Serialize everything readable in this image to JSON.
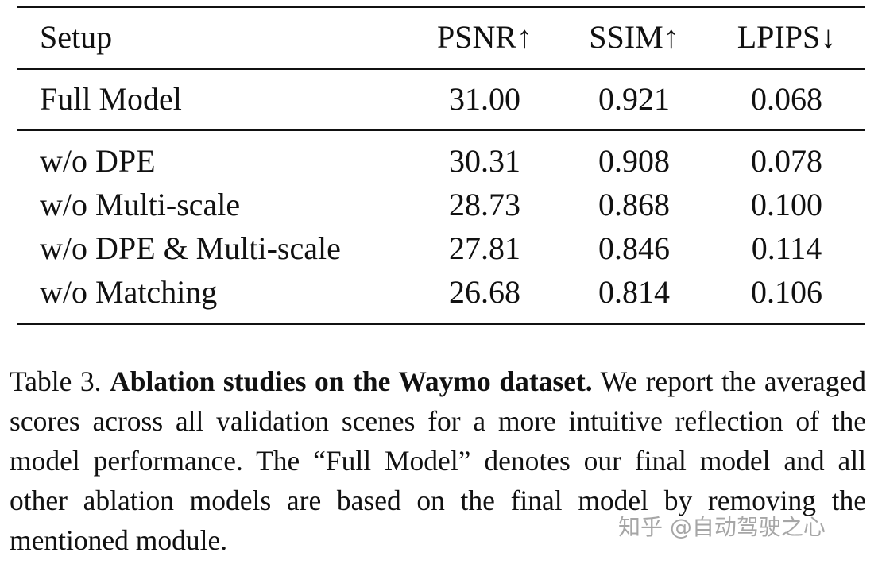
{
  "table": {
    "header": [
      "Setup",
      "PSNR↑",
      "SSIM↑",
      "LPIPS↓"
    ],
    "rows": [
      [
        "Full Model",
        "31.00",
        "0.921",
        "0.068"
      ],
      [
        "w/o DPE",
        "30.31",
        "0.908",
        "0.078"
      ],
      [
        "w/o Multi-scale",
        "28.73",
        "0.868",
        "0.100"
      ],
      [
        "w/o DPE & Multi-scale",
        "27.81",
        "0.846",
        "0.114"
      ],
      [
        "w/o Matching",
        "26.68",
        "0.814",
        "0.106"
      ]
    ]
  },
  "caption": {
    "label": "Table 3.",
    "title": "Ablation studies on the Waymo dataset.",
    "body": "We report the averaged scores across all validation scenes for a more intuitive reflection of the model performance. The “Full Model” denotes our final model and all other ablation models are based on the final model by removing the mentioned module."
  },
  "watermark": "知乎 @自动驾驶之心"
}
